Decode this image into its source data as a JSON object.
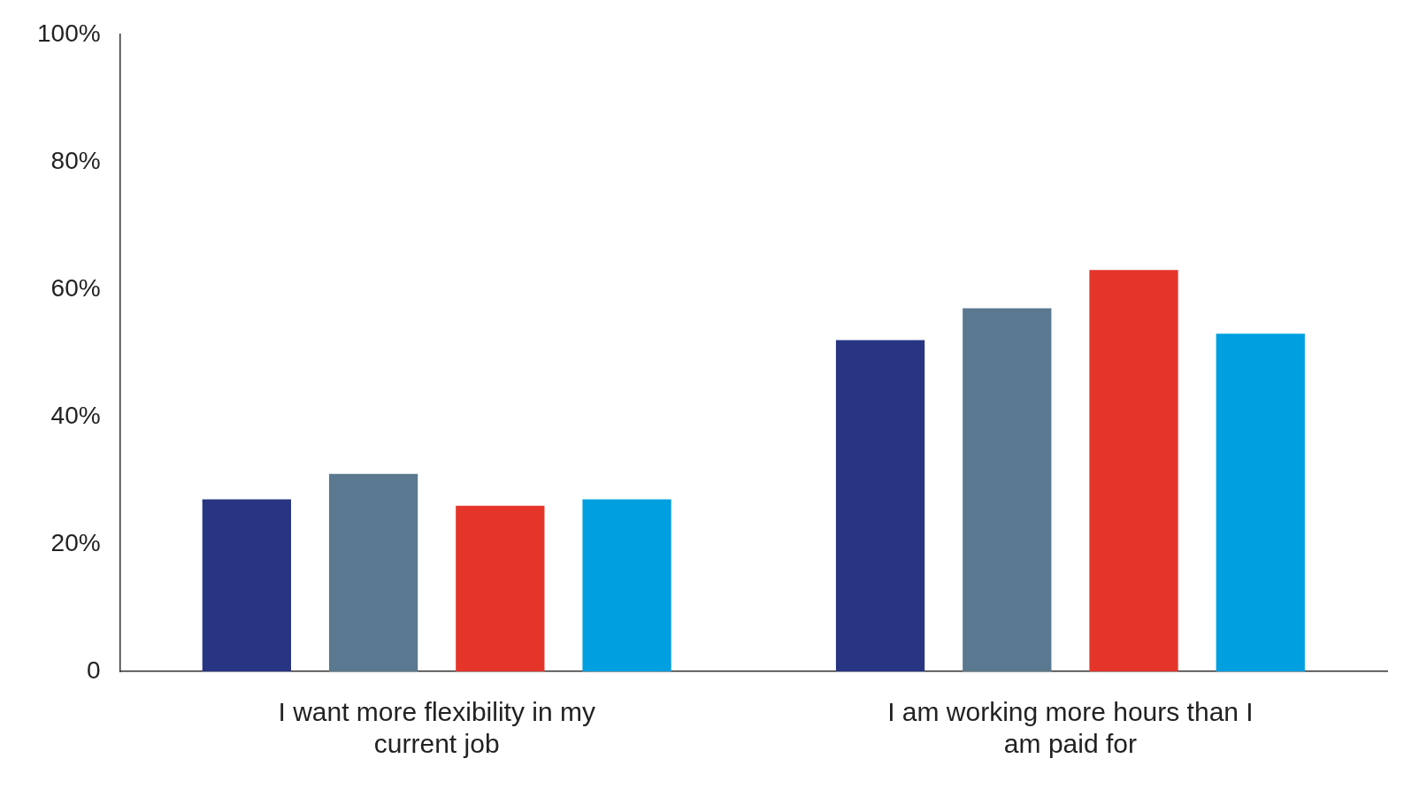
{
  "chart_data": {
    "type": "bar",
    "categories": [
      "I want more flexibility in my current job",
      "I am working more hours than I am paid for"
    ],
    "series": [
      {
        "color": "#283583",
        "values": [
          27,
          52
        ]
      },
      {
        "color": "#5a788f",
        "values": [
          31,
          57
        ]
      },
      {
        "color": "#e5352b",
        "values": [
          26,
          63
        ]
      },
      {
        "color": "#009fe0",
        "values": [
          27,
          53
        ]
      }
    ],
    "ylim": [
      0,
      100
    ],
    "yticks": [
      {
        "value": 0,
        "label": "0"
      },
      {
        "value": 20,
        "label": "20%"
      },
      {
        "value": 40,
        "label": "40%"
      },
      {
        "value": 60,
        "label": "60%"
      },
      {
        "value": 80,
        "label": "80%"
      },
      {
        "value": 100,
        "label": "100%"
      }
    ],
    "grid": false,
    "legend": false
  }
}
